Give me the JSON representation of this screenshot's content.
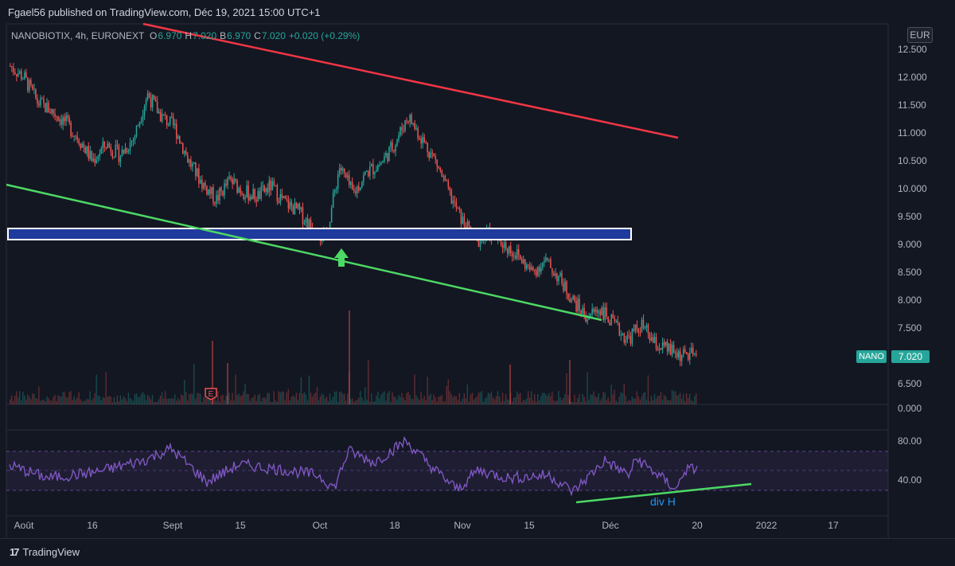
{
  "header": {
    "published_text": "Fgael56 published on TradingView.com, Déc 19, 2021 15:00 UTC+1"
  },
  "legend": {
    "symbol_line": "NANOBIOTIX, 4h, EURONEXT",
    "open_key": "O",
    "open_val": "6.970",
    "high_key": "H",
    "high_val": "7.020",
    "low_key": "B",
    "low_val": "6.970",
    "close_key": "C",
    "close_val": "7.020",
    "change": "+0.020 (+0.29%)"
  },
  "currency": "EUR",
  "last_price": {
    "ticker": "NANO",
    "price": "7.020"
  },
  "indicator": {
    "divergence_label": "div H"
  },
  "footer": {
    "brand": "TradingView",
    "logo": "17"
  },
  "colors": {
    "background": "#131722",
    "up": "#26a69a",
    "down": "#ef5350",
    "resistance_line": "#f23645",
    "support_line": "#4cd964",
    "zone_fill": "#1d3a9c",
    "rsi_line": "#7e57c2",
    "divergence_line": "#4cd964"
  },
  "chart_data": {
    "type": "candlestick",
    "price_axis": [
      "12.500",
      "12.000",
      "11.500",
      "11.000",
      "10.500",
      "10.000",
      "9.500",
      "9.000",
      "8.500",
      "8.000",
      "7.500",
      "6.500",
      "0.000"
    ],
    "rsi_axis": [
      "80.00",
      "40.00"
    ],
    "time_axis": [
      "Août",
      "16",
      "Sept",
      "15",
      "Oct",
      "18",
      "Nov",
      "15",
      "Déc",
      "20",
      "2022",
      "17"
    ],
    "price_range": [
      6.3,
      12.8
    ],
    "rsi_range": [
      15,
      85
    ],
    "price_path": [
      12.2,
      12.0,
      11.55,
      11.4,
      11.2,
      10.9,
      10.5,
      10.8,
      10.6,
      10.9,
      11.7,
      11.3,
      11.1,
      10.5,
      10.1,
      9.8,
      10.15,
      9.95,
      9.85,
      10.05,
      9.75,
      9.6,
      9.3,
      9.1,
      10.4,
      9.9,
      10.3,
      10.45,
      10.8,
      11.3,
      10.9,
      10.5,
      9.9,
      9.4,
      9.05,
      9.2,
      9.0,
      8.8,
      8.5,
      8.7,
      8.4,
      8.0,
      7.7,
      7.85,
      7.55,
      7.3,
      7.55,
      7.2,
      7.1,
      7.0,
      7.02
    ],
    "annotations": {
      "resistance_line": {
        "start": {
          "x": "Août",
          "y": 13.4
        },
        "end": {
          "x": "Déc 20",
          "y": 10.95
        }
      },
      "support_line": {
        "start": {
          "x": "Août",
          "y": 10.08
        },
        "end": {
          "x": "Déc",
          "y": 7.7
        }
      },
      "zone": {
        "low": 9.08,
        "high": 9.28
      },
      "arrow_at": {
        "x": "Oct 5",
        "price": 8.8
      },
      "divergence_line": {
        "start": {
          "x": "Déc",
          "rsi": 29.0
        },
        "end": {
          "x": "2022",
          "rsi": 37.0
        }
      }
    },
    "rsi_levels": [
      70,
      50,
      30
    ]
  }
}
